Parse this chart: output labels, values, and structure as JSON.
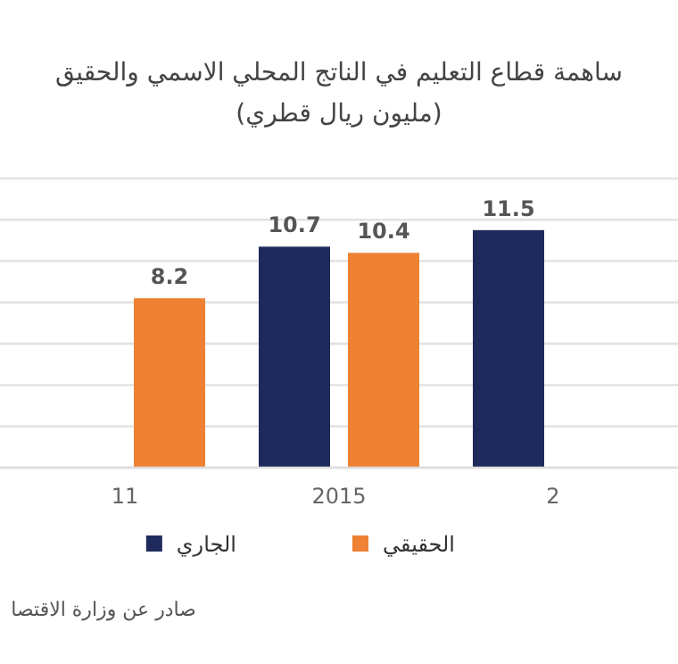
{
  "chart_data": {
    "type": "bar",
    "title": "ساهمة قطاع التعليم في الناتج المحلي الاسمي والحقيق",
    "subtitle": "(مليون ريال قطري)",
    "categories": [
      "11",
      "2015",
      "2"
    ],
    "series": [
      {
        "name": "الجاري",
        "color": "#1f2a5c",
        "values": [
          null,
          10.7,
          11.5
        ]
      },
      {
        "name": "الحقيقي",
        "color": "#ee8133",
        "values": [
          8.2,
          10.4,
          null
        ]
      }
    ],
    "ylim": [
      0,
      14
    ],
    "yticks": [
      {
        "value": 0,
        "label": null
      },
      {
        "value": 2,
        "label": null
      },
      {
        "value": 4,
        "label": null
      },
      {
        "value": 6,
        "label": null
      },
      {
        "value": 8,
        "label": null
      },
      {
        "value": 10,
        "label": null
      },
      {
        "value": 12,
        "label": null
      },
      {
        "value": 14,
        "label": null
      }
    ],
    "tick_labels": "x",
    "grid": "y",
    "legend": "bottom",
    "data_labels": true,
    "annotations": [
      "صادر عن وزارة الاقتصا"
    ]
  }
}
